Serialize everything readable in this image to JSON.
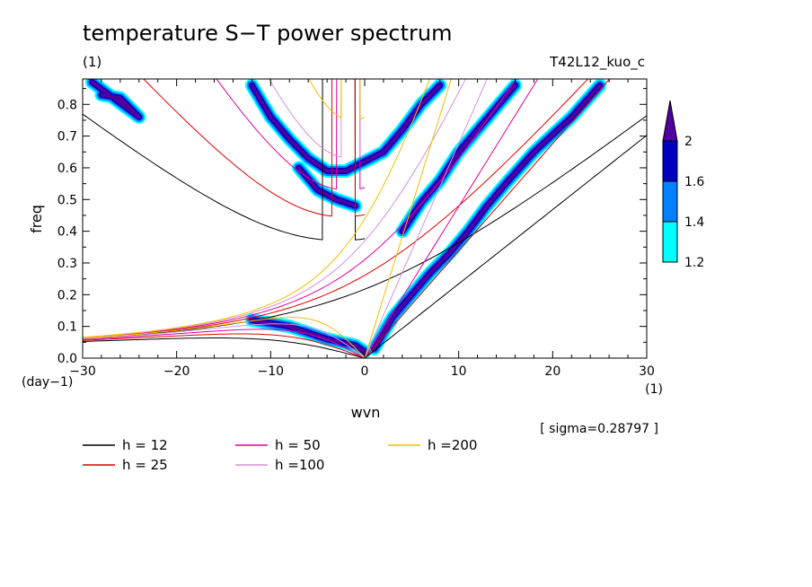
{
  "chart_data": {
    "type": "heatmap",
    "title": "temperature S−T power spectrum",
    "subtitle_left": "(1)",
    "subtitle_right": "T42L12_kuo_c",
    "xlabel": "wvn",
    "x_unit": "(1)",
    "ylabel": "freq",
    "y_unit": "(day−1)",
    "xlim": [
      -30,
      30
    ],
    "ylim": [
      0,
      0.88
    ],
    "x_ticks": [
      -30,
      -20,
      -10,
      0,
      10,
      20,
      30
    ],
    "x_tick_labels": [
      "−30",
      "−20",
      "−10",
      "0",
      "10",
      "20",
      "30"
    ],
    "y_ticks": [
      0.0,
      0.1,
      0.2,
      0.3,
      0.4,
      0.5,
      0.6,
      0.7,
      0.8
    ],
    "y_tick_labels": [
      "0.0",
      "0.1",
      "0.2",
      "0.3",
      "0.4",
      "0.5",
      "0.6",
      "0.7",
      "0.8"
    ],
    "annotation": "[ sigma=0.28797 ]",
    "colorbar": {
      "levels": [
        1.2,
        1.4,
        1.6,
        2
      ],
      "level_labels": [
        "1.2",
        "1.4",
        "1.6",
        "2"
      ],
      "colors": [
        "#00ffff",
        "#0080ff",
        "#0000c0",
        "#50009f"
      ]
    },
    "dispersion_curves": [
      {
        "label": "h = 12",
        "h": 12,
        "color": "#000000"
      },
      {
        "label": "h = 25",
        "h": 25,
        "color": "#e00000"
      },
      {
        "label": "h = 50",
        "h": 50,
        "color": "#e000a0"
      },
      {
        "label": "h =100",
        "h": 100,
        "color": "#d890d8"
      },
      {
        "label": "h =200",
        "h": 200,
        "color": "#f0c000"
      }
    ],
    "power_bands": [
      {
        "name": "kelvin-ridge",
        "points": [
          [
            1,
            0.03
          ],
          [
            3,
            0.13
          ],
          [
            5,
            0.2
          ],
          [
            7,
            0.27
          ],
          [
            9,
            0.33
          ],
          [
            11,
            0.4
          ],
          [
            13,
            0.48
          ],
          [
            15,
            0.55
          ],
          [
            18,
            0.65
          ],
          [
            22,
            0.76
          ],
          [
            25,
            0.86
          ]
        ]
      },
      {
        "name": "gravity-ridge",
        "points": [
          [
            4,
            0.4
          ],
          [
            6,
            0.49
          ],
          [
            8,
            0.56
          ],
          [
            10,
            0.65
          ],
          [
            12,
            0.72
          ],
          [
            14,
            0.79
          ],
          [
            16,
            0.86
          ]
        ]
      },
      {
        "name": "rossby-gravity-arc-upper",
        "points": [
          [
            -12,
            0.86
          ],
          [
            -10,
            0.76
          ],
          [
            -8,
            0.69
          ],
          [
            -6,
            0.63
          ],
          [
            -4,
            0.59
          ],
          [
            -2,
            0.59
          ],
          [
            0,
            0.62
          ],
          [
            2,
            0.65
          ],
          [
            4,
            0.72
          ],
          [
            6,
            0.8
          ],
          [
            8,
            0.86
          ]
        ]
      },
      {
        "name": "rossby-gravity-arc-lower",
        "points": [
          [
            -7,
            0.6
          ],
          [
            -5,
            0.53
          ],
          [
            -3,
            0.5
          ],
          [
            -1,
            0.48
          ]
        ]
      },
      {
        "name": "upper-left-blobs",
        "points": [
          [
            -28,
            0.83
          ],
          [
            -26,
            0.82
          ],
          [
            -24,
            0.76
          ],
          [
            -29,
            0.87
          ]
        ]
      },
      {
        "name": "low-frequency",
        "points": [
          [
            -12,
            0.12
          ],
          [
            -8,
            0.1
          ],
          [
            -4,
            0.06
          ],
          [
            -1,
            0.04
          ],
          [
            0,
            0.02
          ]
        ]
      }
    ]
  }
}
